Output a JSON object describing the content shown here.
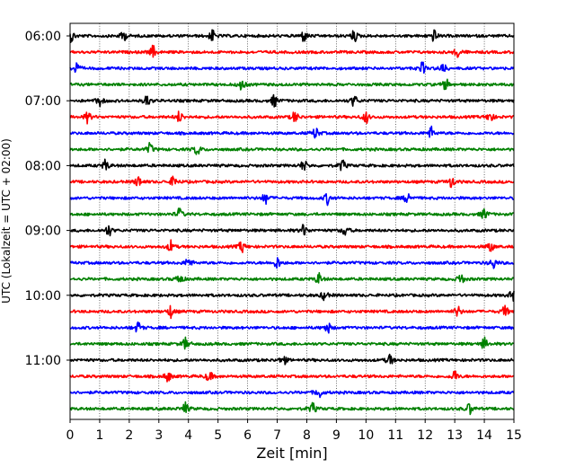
{
  "chart_data": {
    "type": "line",
    "title": "",
    "xlabel": "Zeit  [min]",
    "ylabel": "UTC (Lokalzeit = UTC + 02:00)",
    "xlim": [
      0,
      15
    ],
    "x_ticks": [
      "0",
      "1",
      "2",
      "3",
      "4",
      "5",
      "6",
      "7",
      "8",
      "9",
      "10",
      "11",
      "12",
      "13",
      "14",
      "15"
    ],
    "y_tick_labels": [
      "06:00",
      "07:00",
      "08:00",
      "09:00",
      "10:00",
      "11:00"
    ],
    "rows_per_hour": 4,
    "row_minutes": 15,
    "row_colors": [
      "#000000",
      "#ff0000",
      "#0000ff",
      "#008000"
    ],
    "grid_x": true,
    "traces": [
      {
        "start": "06:00",
        "color": "#000000",
        "events_min": [
          0.05,
          1.8,
          4.8,
          7.9,
          9.6,
          12.3
        ]
      },
      {
        "start": "06:15",
        "color": "#ff0000",
        "events_min": [
          2.8,
          13.1
        ]
      },
      {
        "start": "06:30",
        "color": "#0000ff",
        "events_min": [
          0.2,
          11.9,
          12.6
        ]
      },
      {
        "start": "06:45",
        "color": "#008000",
        "events_min": [
          5.8,
          12.7
        ]
      },
      {
        "start": "07:00",
        "color": "#000000",
        "events_min": [
          1.0,
          2.6,
          6.9,
          9.6
        ]
      },
      {
        "start": "07:15",
        "color": "#ff0000",
        "events_min": [
          0.6,
          3.7,
          7.6,
          10.0,
          14.2
        ]
      },
      {
        "start": "07:30",
        "color": "#0000ff",
        "events_min": [
          8.3,
          12.2
        ]
      },
      {
        "start": "07:45",
        "color": "#008000",
        "events_min": [
          2.7,
          4.3
        ]
      },
      {
        "start": "08:00",
        "color": "#000000",
        "events_min": [
          1.2,
          7.9,
          9.2
        ]
      },
      {
        "start": "08:15",
        "color": "#ff0000",
        "events_min": [
          2.3,
          3.5,
          12.9
        ]
      },
      {
        "start": "08:30",
        "color": "#0000ff",
        "events_min": [
          6.6,
          8.7,
          11.4
        ]
      },
      {
        "start": "08:45",
        "color": "#008000",
        "events_min": [
          3.7,
          14.0
        ]
      },
      {
        "start": "09:00",
        "color": "#000000",
        "events_min": [
          1.3,
          7.9,
          9.3
        ]
      },
      {
        "start": "09:15",
        "color": "#ff0000",
        "events_min": [
          3.4,
          5.8,
          14.2
        ]
      },
      {
        "start": "09:30",
        "color": "#0000ff",
        "events_min": [
          4.0,
          7.0,
          14.3
        ]
      },
      {
        "start": "09:45",
        "color": "#008000",
        "events_min": [
          3.7,
          8.4,
          13.2
        ]
      },
      {
        "start": "10:00",
        "color": "#000000",
        "events_min": [
          8.6,
          14.95
        ]
      },
      {
        "start": "10:15",
        "color": "#ff0000",
        "events_min": [
          3.4,
          13.1,
          14.7
        ]
      },
      {
        "start": "10:30",
        "color": "#0000ff",
        "events_min": [
          2.3,
          8.7
        ]
      },
      {
        "start": "10:45",
        "color": "#008000",
        "events_min": [
          3.9,
          14.0
        ]
      },
      {
        "start": "11:00",
        "color": "#000000",
        "events_min": [
          7.2,
          10.8
        ]
      },
      {
        "start": "11:15",
        "color": "#ff0000",
        "events_min": [
          3.3,
          4.7,
          13.0
        ]
      },
      {
        "start": "11:30",
        "color": "#0000ff",
        "events_min": [
          8.4
        ]
      },
      {
        "start": "11:45",
        "color": "#008000",
        "events_min": [
          3.9,
          8.2,
          13.5
        ]
      }
    ]
  }
}
